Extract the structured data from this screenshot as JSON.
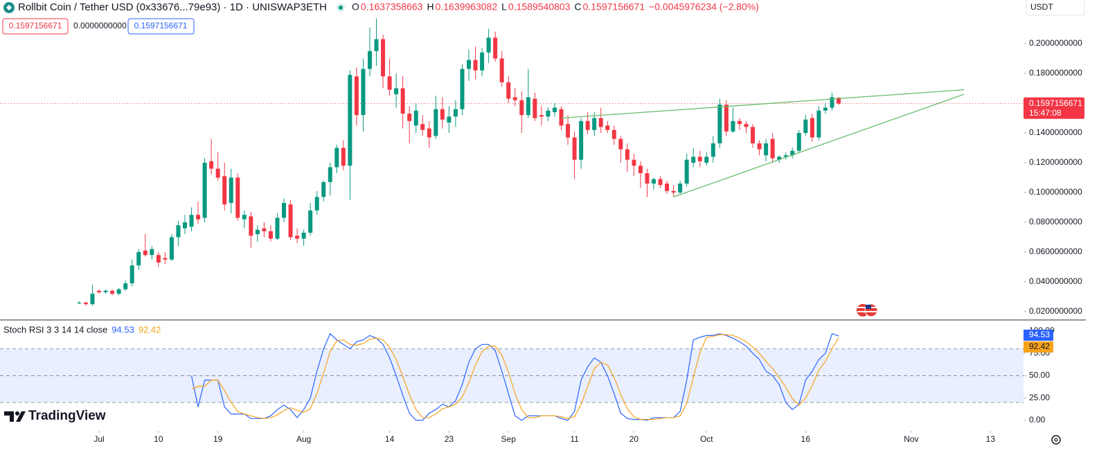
{
  "header": {
    "ohlc_labels": [
      "O",
      "H",
      "L",
      "C"
    ],
    "change": "−0.0045976234 (−2.80%)",
    "zero_price": "0.0000000000",
    "currency": "USDT",
    "countdown": "15:47:08",
    "logo": "TradingView"
  },
  "chart_data": [
    {
      "type": "candlestick",
      "title": "Rollbit Coin / Tether USD (0x33676...79e93) · 1D · UNISWAP3ETH",
      "categories": [
        "Jun 28",
        "Jun 29",
        "Jun 30",
        "Jul 1",
        "Jul 2",
        "Jul 3",
        "Jul 4",
        "Jul 5",
        "Jul 6",
        "Jul 7",
        "Jul 8",
        "Jul 9",
        "Jul 10",
        "Jul 11",
        "Jul 12",
        "Jul 13",
        "Jul 14",
        "Jul 15",
        "Jul 16",
        "Jul 17",
        "Jul 18",
        "Jul 19",
        "Jul 20",
        "Jul 21",
        "Jul 22",
        "Jul 23",
        "Jul 24",
        "Jul 25",
        "Jul 26",
        "Jul 27",
        "Jul 28",
        "Jul 29",
        "Jul 30",
        "Jul 31",
        "Aug 1",
        "Aug 2",
        "Aug 3",
        "Aug 4",
        "Aug 5",
        "Aug 6",
        "Aug 7",
        "Aug 8",
        "Aug 9",
        "Aug 10",
        "Aug 11",
        "Aug 12",
        "Aug 13",
        "Aug 14",
        "Aug 15",
        "Aug 16",
        "Aug 17",
        "Aug 18",
        "Aug 19",
        "Aug 20",
        "Aug 21",
        "Aug 22",
        "Aug 23",
        "Aug 24",
        "Aug 25",
        "Aug 26",
        "Aug 27",
        "Aug 28",
        "Aug 29",
        "Aug 30",
        "Aug 31",
        "Sep 1",
        "Sep 2",
        "Sep 3",
        "Sep 4",
        "Sep 5",
        "Sep 6",
        "Sep 7",
        "Sep 8",
        "Sep 9",
        "Sep 10",
        "Sep 11",
        "Sep 12",
        "Sep 13",
        "Sep 14",
        "Sep 15",
        "Sep 16",
        "Sep 17",
        "Sep 18",
        "Sep 19",
        "Sep 20",
        "Sep 21",
        "Sep 22",
        "Sep 23",
        "Sep 24",
        "Sep 25",
        "Sep 26",
        "Sep 27",
        "Sep 28",
        "Sep 29",
        "Sep 30",
        "Oct 1",
        "Oct 2",
        "Oct 3",
        "Oct 4",
        "Oct 5",
        "Oct 6",
        "Oct 7",
        "Oct 8",
        "Oct 9",
        "Oct 10",
        "Oct 11",
        "Oct 12",
        "Oct 13",
        "Oct 14",
        "Oct 15",
        "Oct 16",
        "Oct 17",
        "Oct 18",
        "Oct 19",
        "Oct 20",
        "Oct 21"
      ],
      "open": [
        0.026,
        0.026,
        0.025,
        0.034,
        0.033,
        0.034,
        0.032,
        0.035,
        0.039,
        0.051,
        0.061,
        0.058,
        0.058,
        0.056,
        0.055,
        0.07,
        0.076,
        0.077,
        0.085,
        0.083,
        0.121,
        0.116,
        0.111,
        0.093,
        0.11,
        0.082,
        0.084,
        0.072,
        0.076,
        0.074,
        0.069,
        0.083,
        0.092,
        0.071,
        0.069,
        0.073,
        0.088,
        0.097,
        0.107,
        0.117,
        0.13,
        0.118,
        0.178,
        0.152,
        0.183,
        0.195,
        0.203,
        0.178,
        0.166,
        0.17,
        0.153,
        0.145,
        0.146,
        0.143,
        0.138,
        0.156,
        0.147,
        0.151,
        0.156,
        0.183,
        0.189,
        0.182,
        0.194,
        0.204,
        0.19,
        0.174,
        0.164,
        0.162,
        0.152,
        0.163,
        0.152,
        0.151,
        0.154,
        0.156,
        0.146,
        0.137,
        0.122,
        0.148,
        0.142,
        0.15,
        0.145,
        0.142,
        0.136,
        0.129,
        0.122,
        0.118,
        0.113,
        0.106,
        0.109,
        0.106,
        0.101,
        0.1,
        0.106,
        0.12,
        0.124,
        0.12,
        0.124,
        0.133,
        0.159,
        0.141,
        0.148,
        0.146,
        0.144,
        0.133,
        0.125,
        0.136,
        0.122,
        0.124,
        0.125,
        0.128,
        0.14,
        0.15,
        0.137,
        0.155,
        0.157,
        0.1637358663
      ],
      "high": [
        0.027,
        0.027,
        0.038,
        0.035,
        0.035,
        0.035,
        0.036,
        0.041,
        0.055,
        0.062,
        0.072,
        0.064,
        0.06,
        0.06,
        0.072,
        0.081,
        0.085,
        0.09,
        0.094,
        0.123,
        0.136,
        0.127,
        0.12,
        0.116,
        0.113,
        0.088,
        0.087,
        0.078,
        0.08,
        0.078,
        0.086,
        0.096,
        0.095,
        0.076,
        0.075,
        0.093,
        0.101,
        0.108,
        0.12,
        0.132,
        0.135,
        0.182,
        0.184,
        0.19,
        0.211,
        0.217,
        0.206,
        0.19,
        0.18,
        0.178,
        0.158,
        0.16,
        0.152,
        0.148,
        0.165,
        0.164,
        0.158,
        0.162,
        0.186,
        0.196,
        0.198,
        0.197,
        0.21,
        0.208,
        0.195,
        0.178,
        0.17,
        0.168,
        0.183,
        0.167,
        0.158,
        0.157,
        0.16,
        0.158,
        0.152,
        0.141,
        0.15,
        0.154,
        0.154,
        0.157,
        0.148,
        0.145,
        0.138,
        0.133,
        0.126,
        0.121,
        0.116,
        0.11,
        0.111,
        0.108,
        0.105,
        0.108,
        0.126,
        0.13,
        0.128,
        0.127,
        0.138,
        0.163,
        0.162,
        0.157,
        0.15,
        0.148,
        0.146,
        0.135,
        0.136,
        0.14,
        0.125,
        0.127,
        0.13,
        0.142,
        0.152,
        0.153,
        0.158,
        0.16,
        0.167,
        0.1639963082
      ],
      "low": [
        0.025,
        0.024,
        0.024,
        0.032,
        0.032,
        0.031,
        0.031,
        0.034,
        0.037,
        0.048,
        0.057,
        0.055,
        0.05,
        0.052,
        0.054,
        0.064,
        0.072,
        0.074,
        0.079,
        0.08,
        0.112,
        0.108,
        0.088,
        0.086,
        0.081,
        0.076,
        0.063,
        0.067,
        0.07,
        0.067,
        0.068,
        0.08,
        0.068,
        0.066,
        0.064,
        0.071,
        0.085,
        0.094,
        0.098,
        0.113,
        0.115,
        0.095,
        0.145,
        0.141,
        0.178,
        0.185,
        0.17,
        0.165,
        0.157,
        0.143,
        0.133,
        0.14,
        0.138,
        0.13,
        0.136,
        0.143,
        0.14,
        0.144,
        0.152,
        0.175,
        0.176,
        0.178,
        0.187,
        0.188,
        0.171,
        0.16,
        0.158,
        0.14,
        0.15,
        0.148,
        0.145,
        0.148,
        0.151,
        0.142,
        0.132,
        0.109,
        0.116,
        0.139,
        0.138,
        0.14,
        0.14,
        0.132,
        0.12,
        0.114,
        0.111,
        0.103,
        0.097,
        0.102,
        0.103,
        0.099,
        0.097,
        0.099,
        0.104,
        0.117,
        0.117,
        0.118,
        0.12,
        0.13,
        0.138,
        0.14,
        0.142,
        0.14,
        0.13,
        0.125,
        0.121,
        0.12,
        0.12,
        0.122,
        0.123,
        0.127,
        0.138,
        0.134,
        0.135,
        0.153,
        0.155,
        0.1589540803
      ],
      "close": [
        0.026,
        0.025,
        0.032,
        0.033,
        0.034,
        0.032,
        0.035,
        0.039,
        0.051,
        0.06,
        0.058,
        0.062,
        0.053,
        0.055,
        0.07,
        0.078,
        0.08,
        0.085,
        0.082,
        0.12,
        0.116,
        0.11,
        0.092,
        0.11,
        0.083,
        0.085,
        0.071,
        0.075,
        0.074,
        0.069,
        0.083,
        0.093,
        0.07,
        0.069,
        0.073,
        0.088,
        0.097,
        0.107,
        0.117,
        0.13,
        0.118,
        0.179,
        0.152,
        0.183,
        0.195,
        0.203,
        0.178,
        0.169,
        0.17,
        0.153,
        0.148,
        0.155,
        0.142,
        0.137,
        0.156,
        0.149,
        0.151,
        0.156,
        0.183,
        0.189,
        0.182,
        0.194,
        0.204,
        0.19,
        0.174,
        0.163,
        0.162,
        0.152,
        0.164,
        0.15,
        0.151,
        0.155,
        0.157,
        0.145,
        0.137,
        0.122,
        0.148,
        0.142,
        0.15,
        0.144,
        0.142,
        0.136,
        0.129,
        0.122,
        0.118,
        0.113,
        0.106,
        0.109,
        0.105,
        0.101,
        0.1,
        0.106,
        0.122,
        0.124,
        0.121,
        0.124,
        0.133,
        0.159,
        0.141,
        0.148,
        0.146,
        0.144,
        0.133,
        0.129,
        0.133,
        0.123,
        0.124,
        0.125,
        0.128,
        0.14,
        0.149,
        0.137,
        0.155,
        0.157,
        0.164,
        0.1597156671
      ],
      "up_color": "#089981",
      "down_color": "#f23645",
      "xlim": [
        "Jun 16",
        "Nov 18"
      ],
      "xticks": [
        {
          "value": "Jul 1",
          "label": "Jul"
        },
        {
          "value": "Jul 10",
          "label": "10"
        },
        {
          "value": "Jul 19",
          "label": "19"
        },
        {
          "value": "Aug 1",
          "label": "Aug"
        },
        {
          "value": "Aug 14",
          "label": "14"
        },
        {
          "value": "Aug 23",
          "label": "23"
        },
        {
          "value": "Sep 1",
          "label": "Sep"
        },
        {
          "value": "Sep 11",
          "label": "11"
        },
        {
          "value": "Sep 20",
          "label": "20"
        },
        {
          "value": "Oct 1",
          "label": "Oct"
        },
        {
          "value": "Oct 16",
          "label": "16"
        },
        {
          "value": "Nov 1",
          "label": "Nov"
        },
        {
          "value": "Nov 13",
          "label": "13"
        }
      ],
      "ylim": [
        0.0144,
        0.2293
      ],
      "yticks": [
        {
          "value": 0.02,
          "label": "0.0200000000"
        },
        {
          "value": 0.04,
          "label": "0.0400000000"
        },
        {
          "value": 0.06,
          "label": "0.0600000000"
        },
        {
          "value": 0.08,
          "label": "0.0800000000"
        },
        {
          "value": 0.1,
          "label": "0.1000000000"
        },
        {
          "value": 0.12,
          "label": "0.1200000000"
        },
        {
          "value": 0.14,
          "label": "0.1400000000"
        },
        {
          "value": 0.16,
          "label": "0.1600000000"
        },
        {
          "value": 0.18,
          "label": "0.1800000000"
        },
        {
          "value": 0.2,
          "label": "0.2000000000"
        }
      ],
      "trendlines": [
        {
          "x": [
            "Sep 9",
            "Nov 9"
          ],
          "values": [
            0.15,
            0.169
          ],
          "color": "#66bb6a"
        },
        {
          "x": [
            "Sep 26",
            "Nov 9"
          ],
          "values": [
            0.097,
            0.166
          ],
          "color": "#66bb6a"
        }
      ],
      "last_price_line": true
    },
    {
      "type": "line",
      "title": "Stoch RSI 3 3 14 14 close",
      "series": [
        {
          "color": "#2962ff",
          "values": [
            null,
            null,
            null,
            null,
            null,
            null,
            null,
            null,
            null,
            null,
            null,
            null,
            null,
            null,
            null,
            null,
            null,
            50,
            15,
            45,
            45,
            45,
            15,
            7,
            7,
            7,
            2,
            2,
            2,
            5,
            12,
            17,
            12,
            3,
            12,
            25,
            55,
            80,
            97,
            90,
            85,
            80,
            88,
            90,
            95,
            92,
            85,
            70,
            50,
            28,
            8,
            0,
            0,
            8,
            12,
            18,
            15,
            22,
            40,
            65,
            80,
            85,
            85,
            78,
            55,
            30,
            5,
            0,
            5,
            5,
            5,
            5,
            5,
            2,
            0,
            10,
            45,
            60,
            70,
            65,
            50,
            30,
            8,
            2,
            1,
            1,
            0,
            3,
            3,
            3,
            3,
            10,
            45,
            90,
            93,
            95,
            95,
            97,
            95,
            92,
            88,
            83,
            75,
            68,
            55,
            50,
            40,
            20,
            12,
            18,
            45,
            55,
            68,
            75,
            97,
            94.53
          ]
        },
        {
          "color": "#f7a21b",
          "values": [
            null,
            null,
            null,
            null,
            null,
            null,
            null,
            null,
            null,
            null,
            null,
            null,
            null,
            null,
            null,
            null,
            null,
            35,
            38,
            38,
            45,
            45,
            33,
            20,
            10,
            7,
            5,
            3,
            2,
            3,
            6,
            11,
            14,
            11,
            9,
            13,
            30,
            53,
            77,
            89,
            90,
            85,
            84,
            86,
            91,
            92,
            90,
            82,
            68,
            49,
            29,
            12,
            3,
            3,
            7,
            13,
            15,
            18,
            26,
            42,
            62,
            77,
            83,
            83,
            73,
            54,
            30,
            12,
            3,
            3,
            5,
            5,
            5,
            4,
            2,
            4,
            18,
            38,
            58,
            65,
            62,
            48,
            29,
            13,
            4,
            1,
            1,
            1,
            2,
            3,
            3,
            5,
            19,
            48,
            76,
            93,
            94,
            96,
            96,
            95,
            92,
            88,
            82,
            75,
            66,
            58,
            48,
            37,
            24,
            17,
            25,
            39,
            56,
            66,
            80,
            92.42
          ]
        }
      ],
      "ylim": [
        -11.7,
        111.6
      ],
      "yticks": [
        {
          "value": 0,
          "label": "0.00"
        },
        {
          "value": 25,
          "label": "25.00"
        },
        {
          "value": 50,
          "label": "50.00"
        },
        {
          "value": 75,
          "label": "75.00"
        },
        {
          "value": 100,
          "label": "100.00"
        }
      ],
      "band": [
        20,
        80
      ],
      "midline": 50,
      "band_color": "#2962ff"
    }
  ]
}
